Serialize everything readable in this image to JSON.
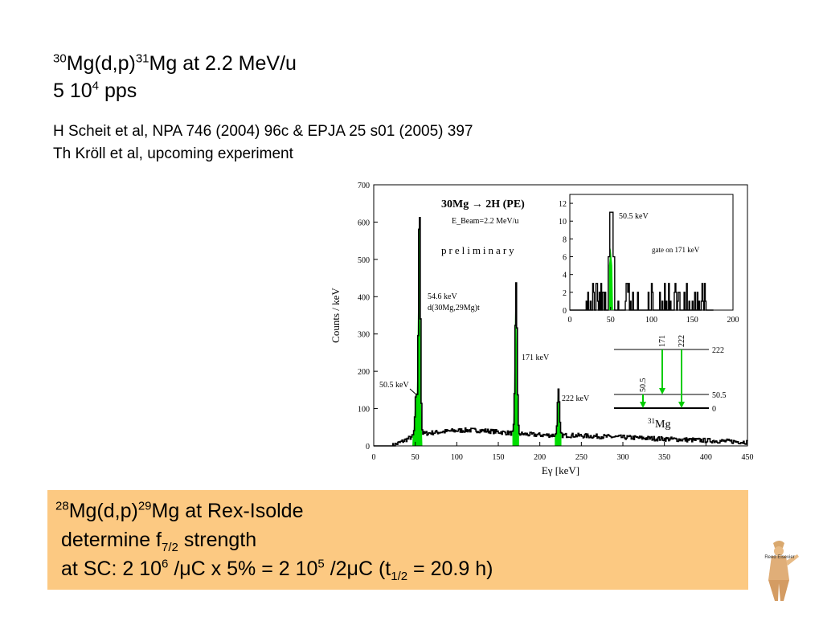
{
  "title": {
    "line1": {
      "pre": "30",
      "a": "Mg(d,p)",
      "sup2": "31",
      "b": "Mg at 2.2 MeV/u"
    },
    "line2": {
      "a": "5 10",
      "sup": "4",
      "b": " pps"
    }
  },
  "refs": {
    "line1": "H Scheit et al, NPA 746 (2004) 96c & EPJA 25 s01 (2005) 397",
    "line2": "Th Kröll et al, upcoming experiment"
  },
  "box": {
    "line1": {
      "sup1": "28",
      "a": "Mg(d,p)",
      "sup2": "29",
      "b": "Mg at Rex-Isolde"
    },
    "line2": {
      "a": " determine f",
      "sub": "7/2",
      "b": " strength"
    },
    "line3": {
      "a": " at SC: 2 10",
      "sup1": "6",
      "b": " /μC x 5% = 2 10",
      "sup2": "5",
      "c": " /2μC (t",
      "sub": "1/2",
      "d": " = 20.9 h)"
    }
  },
  "logo": {
    "text": "Reed Elsevier"
  },
  "chart_data": [
    {
      "type": "line",
      "xlabel": "Eγ [keV]",
      "ylabel": "Counts / keV",
      "xlim": [
        0,
        450
      ],
      "ylim": [
        0,
        700
      ],
      "xticks": [
        0,
        50,
        100,
        150,
        200,
        250,
        300,
        350,
        400,
        450
      ],
      "yticks": [
        0,
        100,
        200,
        300,
        400,
        500,
        600,
        700
      ],
      "legend": {
        "reaction": "30Mg → 2H (PE)",
        "energy": "E_Beam=2.2 MeV/u",
        "status": "preliminary"
      },
      "annotations": [
        {
          "text": "54.6 keV",
          "x": 54.6
        },
        {
          "text": "d(30Mg,29Mg)t",
          "x": 54.6
        },
        {
          "text": "50.5 keV",
          "x": 50.5
        },
        {
          "text": "171 keV",
          "x": 171
        },
        {
          "text": "222 keV",
          "x": 222
        }
      ],
      "peaks": [
        {
          "energy": 50.5,
          "height": 135
        },
        {
          "energy": 54.6,
          "height": 645
        },
        {
          "energy": 171,
          "height": 435
        },
        {
          "energy": 222,
          "height": 150
        }
      ],
      "highlight_color": "#00dd00"
    },
    {
      "type": "line",
      "title": "gate on 171 keV",
      "xlim": [
        0,
        200
      ],
      "ylim": [
        0,
        13
      ],
      "xticks": [
        0,
        50,
        100,
        150,
        200
      ],
      "yticks": [
        0,
        2,
        4,
        6,
        8,
        10,
        12
      ],
      "annotations": [
        {
          "text": "50.5 keV",
          "x": 50.5
        }
      ],
      "peaks": [
        {
          "energy": 50.5,
          "height": 11
        }
      ]
    }
  ],
  "level_scheme": {
    "levels": [
      "222",
      "50.5",
      "0"
    ],
    "transitions": [
      "171",
      "222",
      "50.5"
    ],
    "nucleus": {
      "mass": "31",
      "symbol": "Mg"
    }
  }
}
